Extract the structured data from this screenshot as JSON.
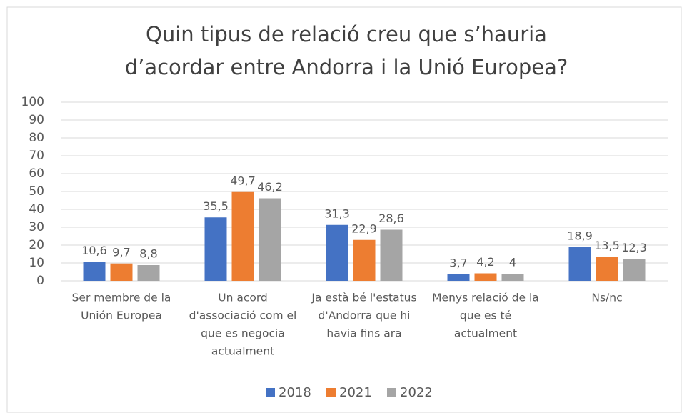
{
  "chart_data": {
    "type": "bar",
    "title": [
      "Quin tipus de relació creu que s’hauria",
      "d’acordar entre Andorra i la Unió Europea?"
    ],
    "categories": [
      [
        "Ser membre de la",
        "Unión Europea"
      ],
      [
        "Un acord",
        "d'associació com el",
        "que es negocia",
        "actualment"
      ],
      [
        "Ja està bé l'estatus",
        "d'Andorra que hi",
        "havia fins ara"
      ],
      [
        "Menys relació de la",
        "que es té",
        "actualment"
      ],
      [
        "Ns/nc"
      ]
    ],
    "series": [
      {
        "name": "2018",
        "color": "#4472c4",
        "values": [
          10.6,
          35.5,
          31.3,
          3.7,
          18.9
        ],
        "value_labels": [
          "10,6",
          "35,5",
          "31,3",
          "3,7",
          "18,9"
        ]
      },
      {
        "name": "2021",
        "color": "#ed7d31",
        "values": [
          9.7,
          49.7,
          22.9,
          4.2,
          13.5
        ],
        "value_labels": [
          "9,7",
          "49,7",
          "22,9",
          "4,2",
          "13,5"
        ]
      },
      {
        "name": "2022",
        "color": "#a5a5a5",
        "values": [
          8.8,
          46.2,
          28.6,
          4,
          12.3
        ],
        "value_labels": [
          "8,8",
          "46,2",
          "28,6",
          "4",
          "12,3"
        ]
      }
    ],
    "ylim": [
      0,
      100
    ],
    "yticks": [
      0,
      10,
      20,
      30,
      40,
      50,
      60,
      70,
      80,
      90,
      100
    ],
    "grid": true,
    "legend": "bottom"
  }
}
